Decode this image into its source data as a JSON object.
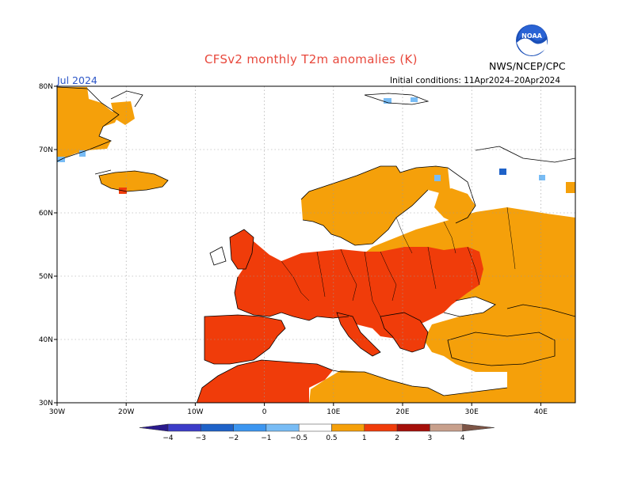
{
  "header": {
    "title": "CFSv2 monthly T2m anomalies (K)",
    "period": "Jul 2024",
    "initial_conditions": "Initial conditions: 11Apr2024–20Apr2024",
    "agency": "NWS/NCEP/CPC",
    "logo_text": "NOAA"
  },
  "map": {
    "lon_range": [
      -30,
      45
    ],
    "lat_range": [
      30,
      80
    ],
    "lat_labels": [
      "80N",
      "70N",
      "60N",
      "50N",
      "40N",
      "30N"
    ],
    "lon_labels": [
      "30W",
      "20W",
      "10W",
      "0",
      "10E",
      "20E",
      "30E",
      "40E"
    ],
    "grid": true
  },
  "legend": {
    "labels": [
      "−4",
      "−3",
      "−2",
      "−1",
      "−0.5",
      "0.5",
      "1",
      "2",
      "3",
      "4"
    ],
    "colors": [
      "#2a1a8c",
      "#3c3cc8",
      "#1e62c8",
      "#3c96f0",
      "#78bcf5",
      "#ffffff",
      "#f5a00a",
      "#f03c0a",
      "#a50f0a",
      "#c8a08c",
      "#7d5546"
    ]
  },
  "colors": {
    "orange": "#f5a00a",
    "red": "#f03c0a",
    "lightblue": "#78bcf5",
    "title": "#e8483c"
  }
}
